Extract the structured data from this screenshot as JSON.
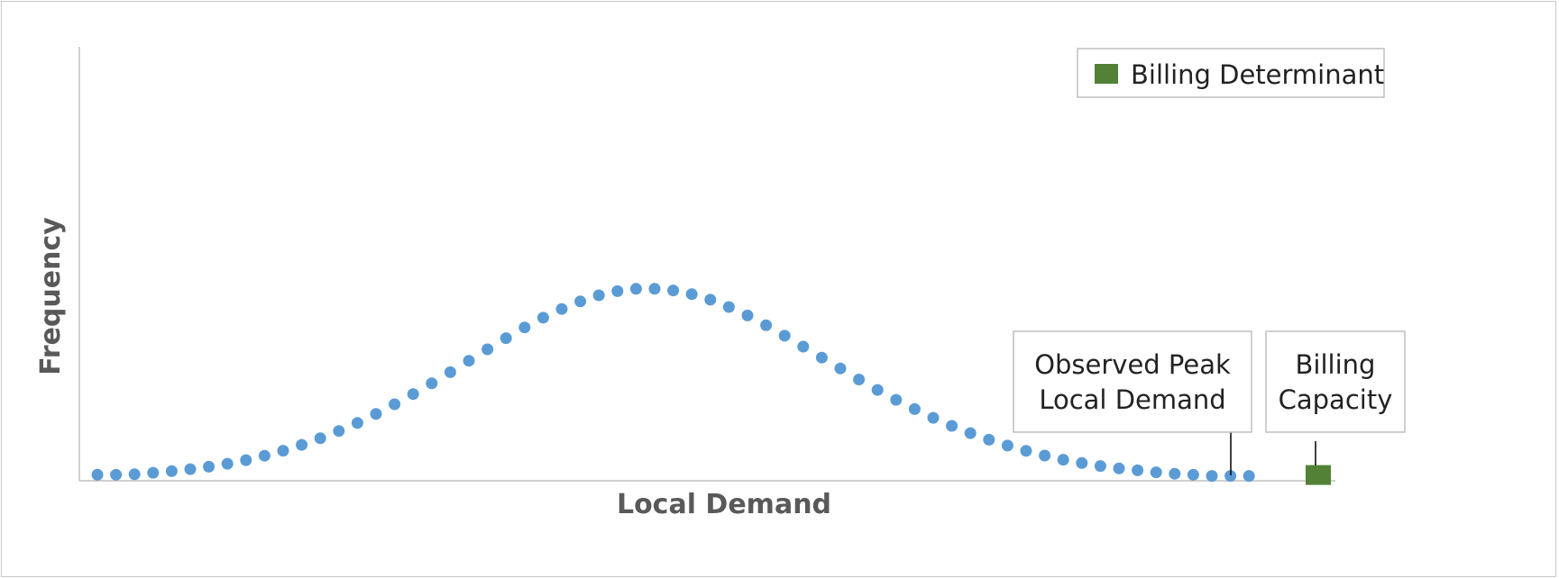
{
  "chart_data": {
    "type": "scatter",
    "title": "",
    "xlabel": "Local Demand",
    "ylabel": "Frequency",
    "grid": false,
    "legend_placement": "top-right",
    "legend": [
      {
        "name": "Billing Determinant",
        "color": "#538135",
        "marker": "square"
      }
    ],
    "series": [
      {
        "color": "#5b9bd5",
        "marker": "circle",
        "values": [
          0.01,
          0.01,
          0.012,
          0.018,
          0.025,
          0.033,
          0.043,
          0.055,
          0.07,
          0.088,
          0.109,
          0.133,
          0.16,
          0.19,
          0.223,
          0.26,
          0.3,
          0.342,
          0.386,
          0.432,
          0.479,
          0.526,
          0.572,
          0.616,
          0.656,
          0.692,
          0.723,
          0.748,
          0.765,
          0.775,
          0.775,
          0.768,
          0.753,
          0.73,
          0.7,
          0.665,
          0.625,
          0.582,
          0.537,
          0.492,
          0.447,
          0.402,
          0.359,
          0.318,
          0.28,
          0.244,
          0.211,
          0.181,
          0.154,
          0.13,
          0.108,
          0.089,
          0.072,
          0.058,
          0.046,
          0.036,
          0.028,
          0.02,
          0.014,
          0.01,
          0.005,
          0.005,
          0.005
        ]
      },
      {
        "name": "Billing Determinant",
        "color": "#538135",
        "marker": "square",
        "values": [
          0.005
        ]
      }
    ],
    "annotations": [
      {
        "id": "observed-peak",
        "lines": [
          "Observed Peak",
          "Local Demand"
        ]
      },
      {
        "id": "billing-capacity",
        "lines": [
          "Billing",
          "Capacity"
        ]
      }
    ]
  }
}
